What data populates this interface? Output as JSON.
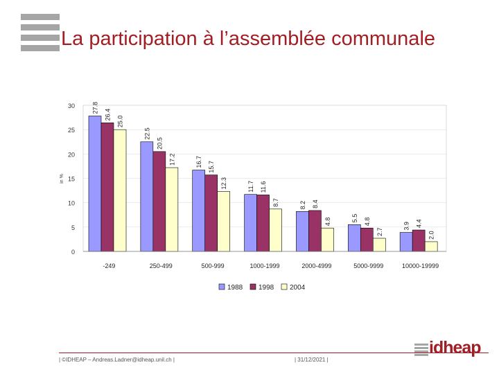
{
  "slide": {
    "title": "La participation à l’assemblée communale"
  },
  "footer": {
    "credit": "| ©IDHEAP – Andreas.Ladner@idheap.unil.ch |",
    "date": "| 31/12/2021 |",
    "brand": "idheap"
  },
  "colors": {
    "title": "#a01e24",
    "series_1988": "#9999ff",
    "series_1998": "#993366",
    "series_2004": "#ffffcc"
  },
  "chart_data": {
    "type": "bar",
    "title": "",
    "xlabel": "",
    "ylabel": "in %",
    "ylim": [
      0,
      30
    ],
    "yticks": [
      "0",
      "5",
      "10",
      "15",
      "20",
      "25",
      "30"
    ],
    "legend_position": "bottom",
    "categories": [
      "-249",
      "250-499",
      "500-999",
      "1000-1999",
      "2000-4999",
      "5000-9999",
      "10000-19999"
    ],
    "series": [
      {
        "name": "1988",
        "values": [
          27.8,
          22.5,
          16.7,
          11.7,
          8.2,
          5.5,
          3.9
        ],
        "labels": [
          "27.8",
          "22.5",
          "16.7",
          "11.7",
          "8.2",
          "5.5",
          "3.9"
        ]
      },
      {
        "name": "1998",
        "values": [
          26.4,
          20.5,
          15.7,
          11.6,
          8.4,
          4.8,
          4.4
        ],
        "labels": [
          "26.4",
          "20.5",
          "15.7",
          "11.6",
          "8.4",
          "4.8",
          "4.4"
        ]
      },
      {
        "name": "2004",
        "values": [
          25.0,
          17.2,
          12.3,
          8.7,
          4.8,
          2.7,
          2.0
        ],
        "labels": [
          "25.0",
          "17.2",
          "12.3",
          "8.7",
          "4.8",
          "2.7",
          "2.0"
        ]
      }
    ]
  }
}
